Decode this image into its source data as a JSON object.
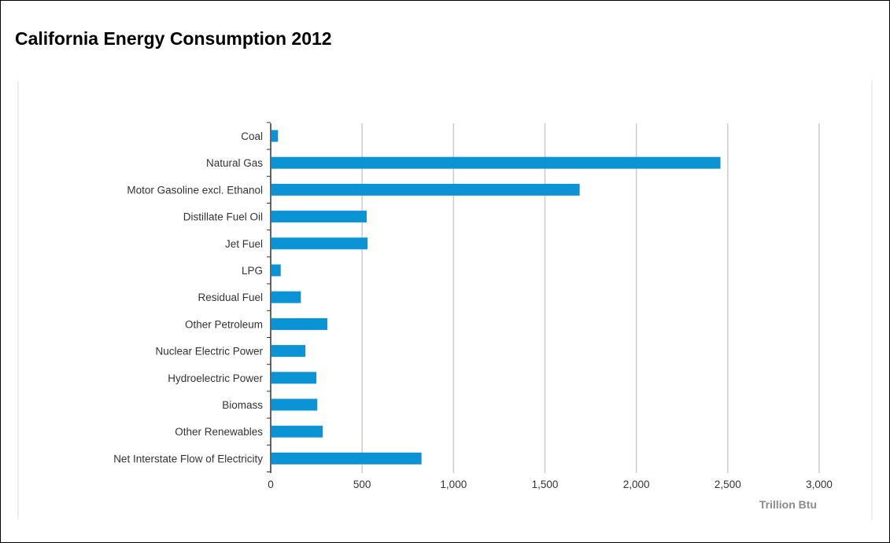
{
  "page": {
    "title": "California Energy Consumption 2012"
  },
  "colors": {
    "bar": "#0a94d6",
    "grid": "#cccccc",
    "axis": "#333333",
    "frame": "#000000"
  },
  "chart_data": {
    "type": "bar",
    "orientation": "horizontal",
    "title": "California Energy Consumption 2012",
    "categories": [
      "Coal",
      "Natural Gas",
      "Motor Gasoline excl. Ethanol",
      "Distillate Fuel Oil",
      "Jet Fuel",
      "LPG",
      "Residual Fuel",
      "Other Petroleum",
      "Nuclear Electric Power",
      "Hydroelectric Power",
      "Biomass",
      "Other Renewables",
      "Net Interstate Flow of Electricity"
    ],
    "values": [
      40,
      2460,
      1690,
      525,
      530,
      55,
      165,
      310,
      190,
      250,
      255,
      285,
      825
    ],
    "xlabel": "Trillion Btu",
    "ylabel": "",
    "xlim": [
      0,
      3000
    ],
    "ticks": [
      0,
      500,
      1000,
      1500,
      2000,
      2500,
      3000
    ],
    "tick_labels": [
      "0",
      "500",
      "1,000",
      "1,500",
      "2,000",
      "2,500",
      "3,000"
    ],
    "grid": true,
    "legend": "none"
  }
}
